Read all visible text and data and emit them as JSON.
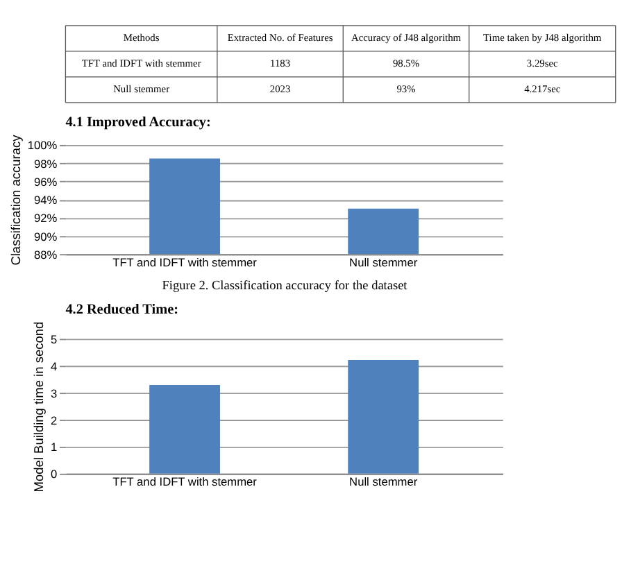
{
  "chart_data": [
    {
      "type": "other",
      "annotations": [
        "Methods",
        "Extracted No. of Features",
        "Accuracy of J48 algorithm",
        "Time taken by J48 algorithm",
        "TFT and IDFT with stemmer",
        "1183",
        "98.5%",
        "3.29sec",
        "Null stemmer",
        "2023",
        "93%",
        "4.217sec"
      ]
    },
    {
      "type": "bar",
      "title": "4.1 Improved Accuracy:",
      "ylabel": "Classification accuracy",
      "categories": [
        "TFT and IDFT with stemmer",
        "Null stemmer"
      ],
      "values": [
        98.5,
        93
      ],
      "color": "#4f81bd",
      "ylim": [
        88,
        100
      ],
      "yticks": [
        {
          "value": 88,
          "label": "88%"
        },
        {
          "value": 90,
          "label": "90%"
        },
        {
          "value": 92,
          "label": "92%"
        },
        {
          "value": 94,
          "label": "94%"
        },
        {
          "value": 96,
          "label": "96%"
        },
        {
          "value": 98,
          "label": "98%"
        },
        {
          "value": 100,
          "label": "100%"
        }
      ],
      "grid": "y",
      "annotations": [
        "Figure 2. Classification accuracy for the dataset"
      ]
    },
    {
      "type": "bar",
      "title": "4.2 Reduced Time:",
      "ylabel": "Model Building time in second",
      "categories": [
        "TFT and IDFT with stemmer",
        "Null stemmer"
      ],
      "values": [
        3.29,
        4.217
      ],
      "color": "#4f81bd",
      "ylim": [
        0,
        5
      ],
      "yticks": [
        0,
        1,
        2,
        3,
        4,
        5
      ],
      "grid": "y"
    }
  ]
}
